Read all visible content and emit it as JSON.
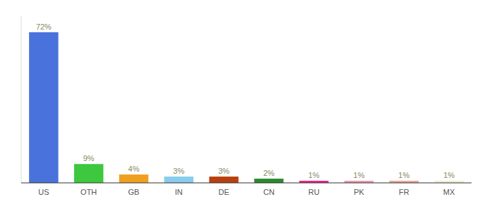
{
  "chart_data": {
    "type": "bar",
    "categories": [
      "US",
      "OTH",
      "GB",
      "IN",
      "DE",
      "CN",
      "RU",
      "PK",
      "FR",
      "MX"
    ],
    "values": [
      72,
      9,
      4,
      3,
      3,
      2,
      1,
      1,
      1,
      1
    ],
    "value_labels": [
      "72%",
      "9%",
      "4%",
      "3%",
      "3%",
      "2%",
      "1%",
      "1%",
      "1%",
      "1%"
    ],
    "colors": [
      "#4a72dc",
      "#3dc83d",
      "#f0a020",
      "#88ccee",
      "#b84010",
      "#2a8a2a",
      "#ee2288",
      "#ee99aa",
      "#e8a898",
      "#f0f0d8"
    ],
    "ylim": [
      0,
      80
    ],
    "data_labels": true,
    "tick_labels": "x",
    "grid": false
  }
}
